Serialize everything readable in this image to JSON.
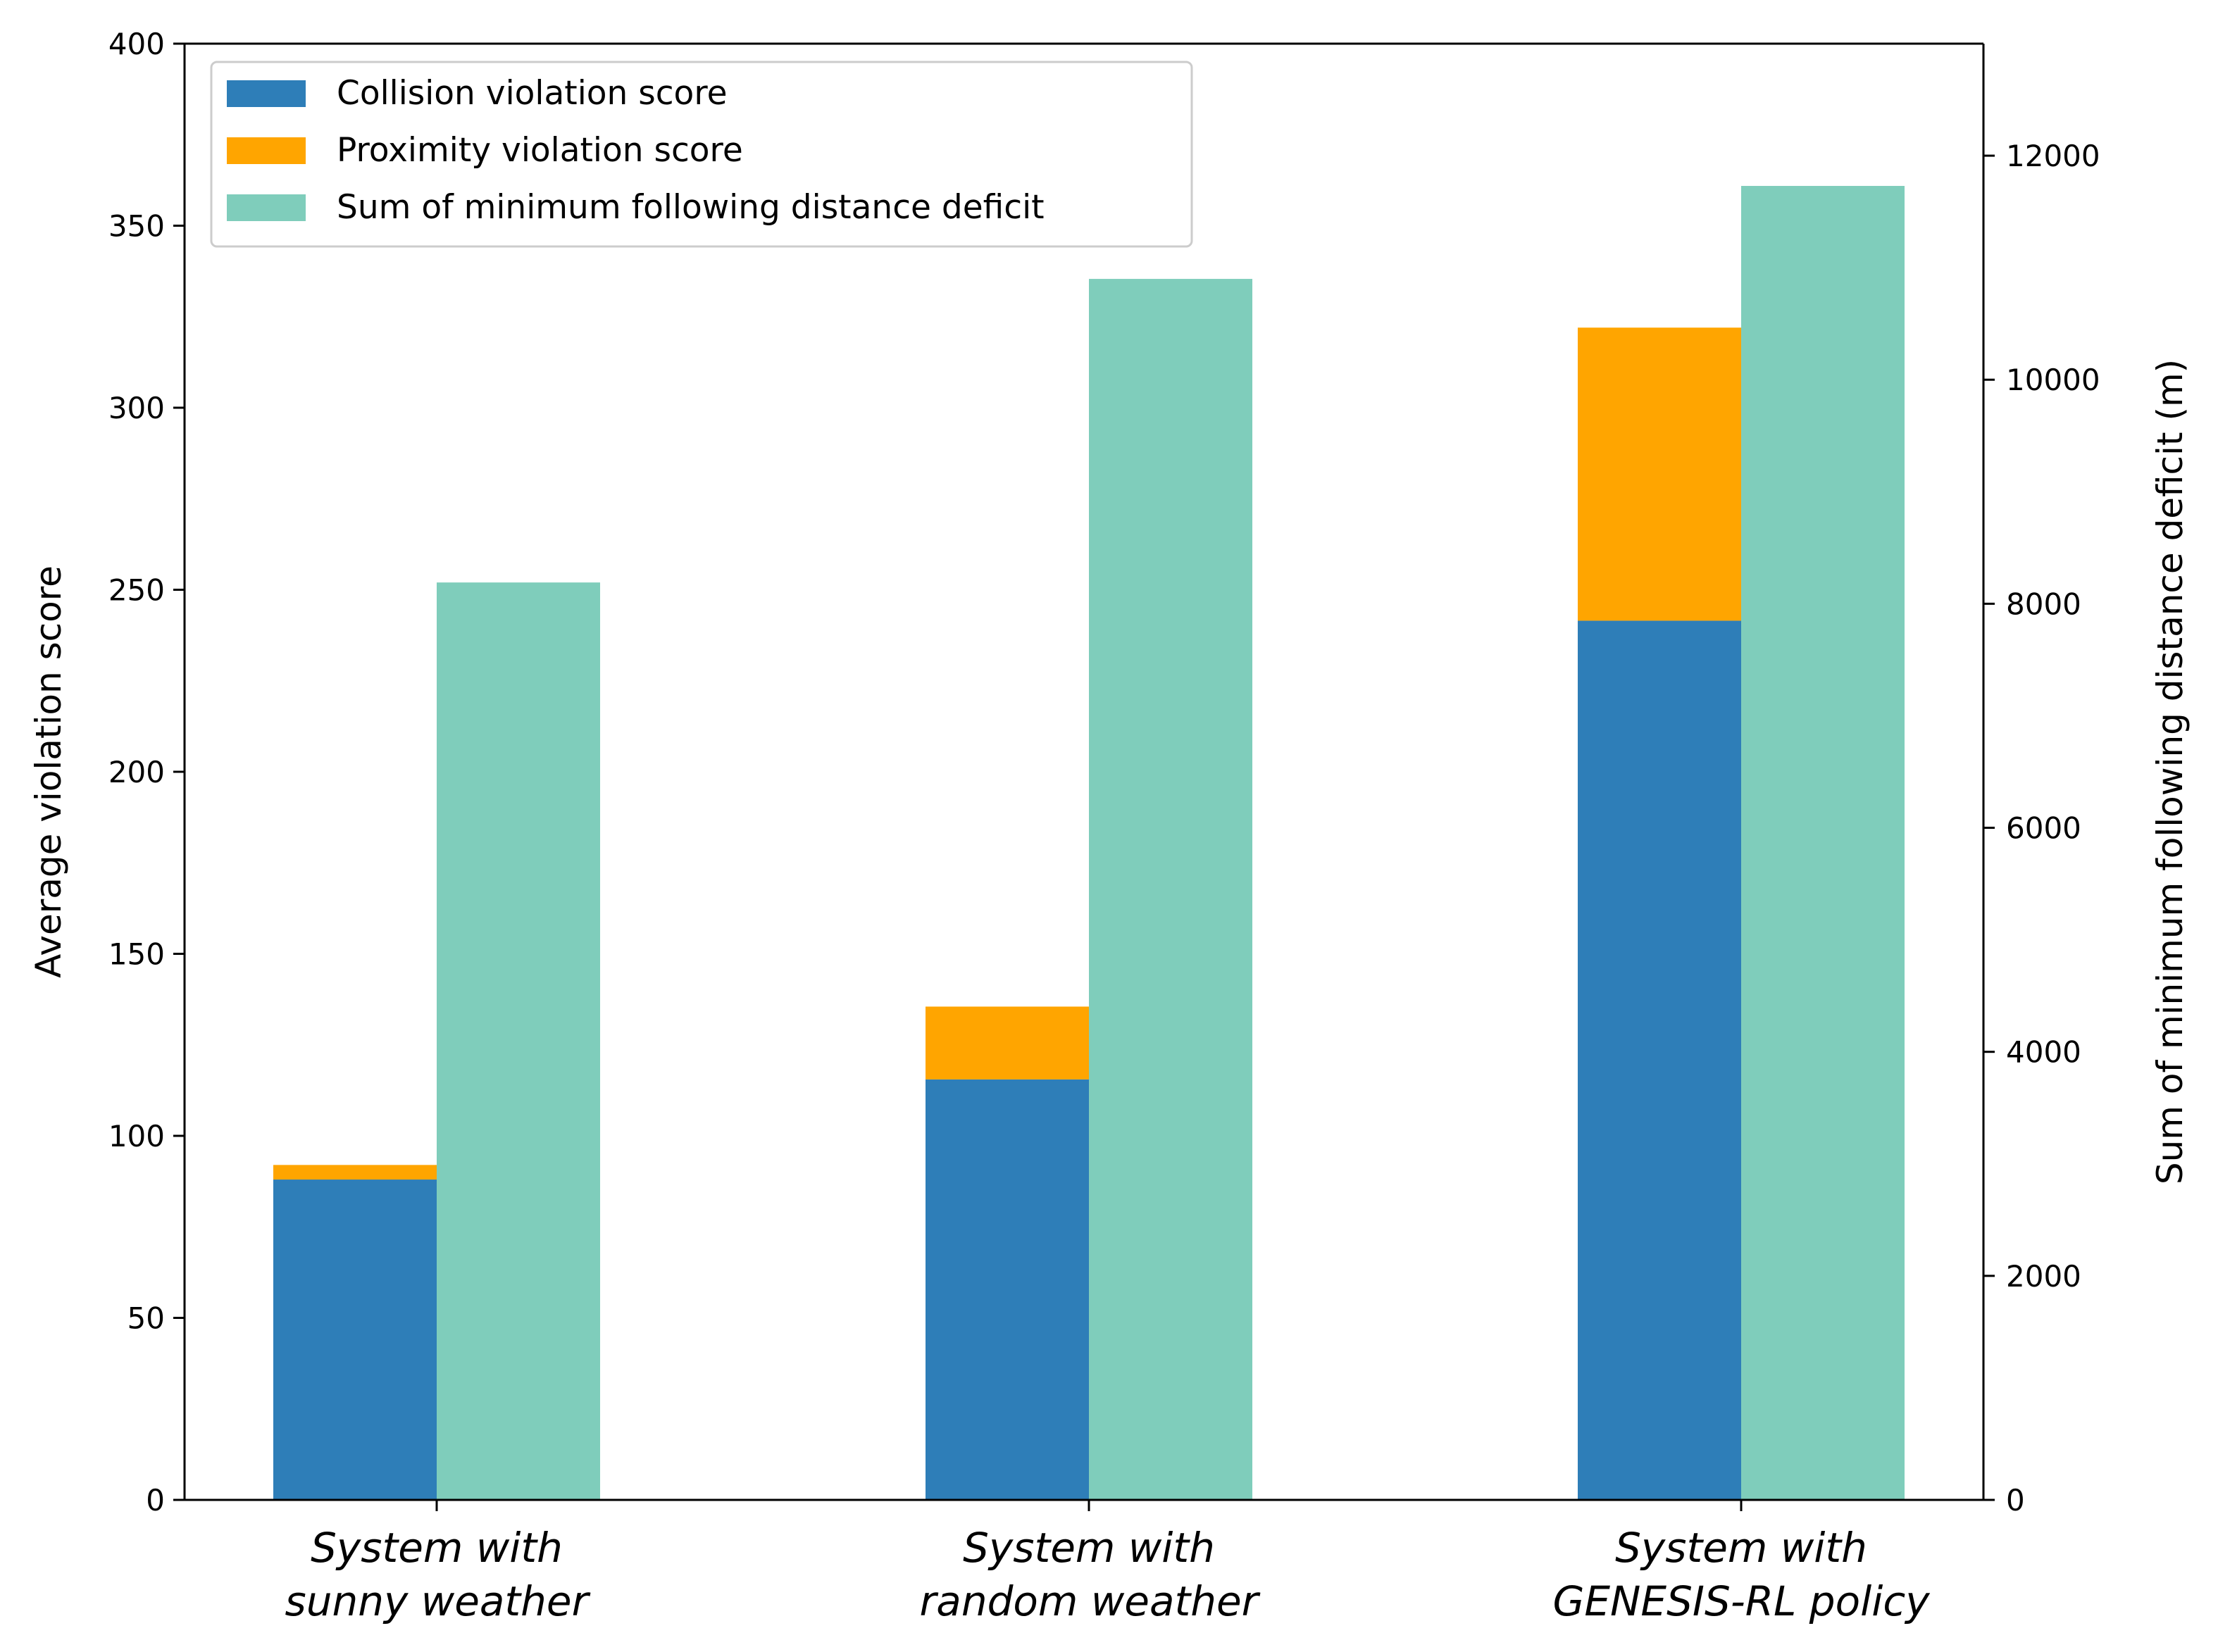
{
  "chart_data": {
    "type": "bar",
    "categories": [
      [
        "System with",
        "sunny weather"
      ],
      [
        "System with",
        "random weather"
      ],
      [
        "System with",
        "GENESIS-RL policy"
      ]
    ],
    "series": [
      {
        "name": "Collision violation score",
        "axis": "left",
        "stack": "violation",
        "color": "#2e7eb8",
        "values": [
          88,
          115.5,
          241.5
        ]
      },
      {
        "name": "Proximity violation score",
        "axis": "left",
        "stack": "violation",
        "color": "#ffa500",
        "values": [
          4,
          20,
          80.5
        ]
      },
      {
        "name": "Sum of minimum following distance deficit",
        "axis": "right",
        "stack": "deficit",
        "color": "#7fcdbb",
        "values": [
          8190,
          10900,
          11730
        ]
      }
    ],
    "ylabel": "Average violation score",
    "ylim": [
      0,
      400
    ],
    "yticks": [
      0,
      50,
      100,
      150,
      200,
      250,
      300,
      350,
      400
    ],
    "y2label": "Sum of minimum following distance deficit (m)",
    "y2lim": [
      0,
      13000
    ],
    "y2ticks": [
      0,
      2000,
      4000,
      6000,
      8000,
      10000,
      12000
    ],
    "legend_position": "top-left",
    "grid": false
  }
}
